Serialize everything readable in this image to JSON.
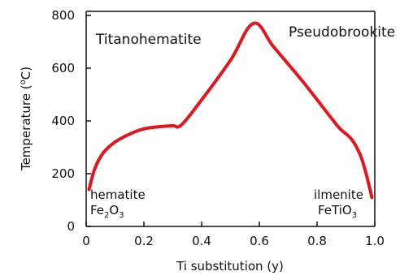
{
  "chart_data": {
    "type": "line",
    "xlabel": "Ti substitution (y)",
    "ylabel": "Temperature (°C)",
    "ylabel_parts": {
      "pre": "Temperature (",
      "sup": "o",
      "post": "C)"
    },
    "xlim": [
      0,
      1
    ],
    "ylim": [
      0,
      800
    ],
    "x_ticks": [
      0,
      0.2,
      0.4,
      0.6,
      0.8,
      1.0
    ],
    "x_tick_labels": [
      "0",
      "0.2",
      "0.4",
      "0.6",
      "0.8",
      "1.0"
    ],
    "y_ticks": [
      0,
      200,
      400,
      600,
      800
    ],
    "y_tick_labels": [
      "0",
      "200",
      "400",
      "600",
      "800"
    ],
    "grid": false,
    "series": [
      {
        "color": "#e8141c",
        "x": [
          0.01,
          0.03,
          0.06,
          0.1,
          0.15,
          0.2,
          0.25,
          0.3,
          0.33,
          0.4,
          0.5,
          0.58,
          0.65,
          0.75,
          0.85,
          0.88,
          0.92,
          0.95,
          0.97,
          0.99
        ],
        "y": [
          140,
          220,
          280,
          320,
          350,
          370,
          378,
          382,
          385,
          480,
          630,
          770,
          680,
          550,
          410,
          370,
          330,
          270,
          200,
          110
        ]
      }
    ],
    "annotations": {
      "region_left": "Titanohematite",
      "region_right": "Pseudobrookite",
      "left_name": "hematite",
      "left_formula": {
        "a": "Fe",
        "s1": "2",
        "b": "O",
        "s2": "3"
      },
      "right_name": "ilmenite",
      "right_formula": {
        "a": "FeTiO",
        "s1": "3"
      }
    }
  }
}
